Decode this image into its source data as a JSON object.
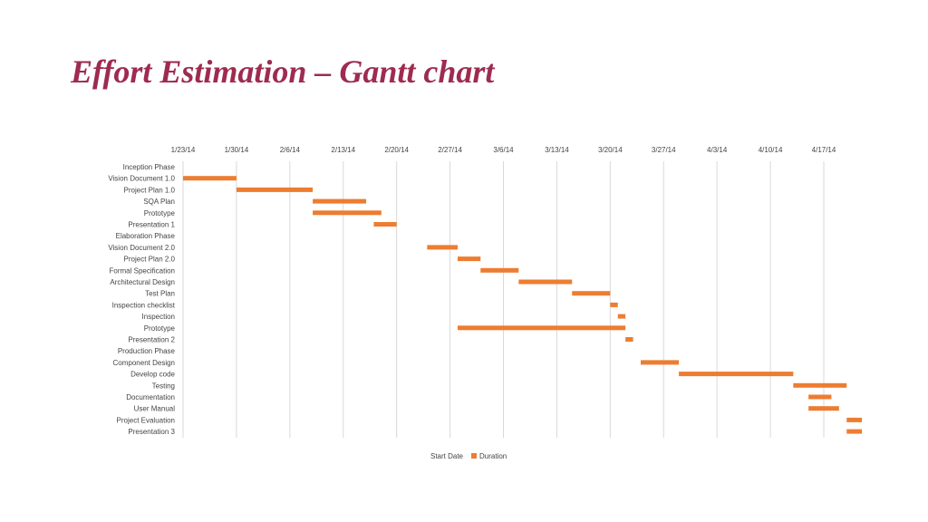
{
  "slide": {
    "title": "Effort Estimation – Gantt chart"
  },
  "chart_data": {
    "type": "bar",
    "orientation": "horizontal-stacked",
    "title": "",
    "xlabel": "",
    "ylabel": "",
    "x_range": [
      "2014-01-23",
      "2014-04-17"
    ],
    "x_ticks": [
      "1/23/14",
      "1/30/14",
      "2/6/14",
      "2/13/14",
      "2/20/14",
      "2/27/14",
      "3/6/14",
      "3/13/14",
      "3/20/14",
      "3/27/14",
      "4/3/14",
      "4/10/14",
      "4/17/14"
    ],
    "grid": "vertical",
    "legend_position": "bottom",
    "legend": [
      {
        "label": "Start Date",
        "color": "none"
      },
      {
        "label": "Duration",
        "color": "#ed7d31"
      }
    ],
    "colors": {
      "duration": "#ed7d31",
      "grid": "#d9d9d9"
    },
    "tasks": [
      {
        "name": "Inception Phase",
        "start": null,
        "end": null
      },
      {
        "name": "Vision Document 1.0",
        "start": "2014-01-23",
        "end": "2014-01-30"
      },
      {
        "name": "Project Plan 1.0",
        "start": "2014-01-30",
        "end": "2014-02-09"
      },
      {
        "name": "SQA Plan",
        "start": "2014-02-09",
        "end": "2014-02-16"
      },
      {
        "name": "Prototype",
        "start": "2014-02-09",
        "end": "2014-02-18"
      },
      {
        "name": "Presentation 1",
        "start": "2014-02-17",
        "end": "2014-02-20"
      },
      {
        "name": "Elaboration Phase",
        "start": null,
        "end": null
      },
      {
        "name": "Vision Document 2.0",
        "start": "2014-02-24",
        "end": "2014-02-28"
      },
      {
        "name": "Project Plan 2.0",
        "start": "2014-02-28",
        "end": "2014-03-03"
      },
      {
        "name": "Formal Specification",
        "start": "2014-03-03",
        "end": "2014-03-08"
      },
      {
        "name": "Architectural Design",
        "start": "2014-03-08",
        "end": "2014-03-15"
      },
      {
        "name": "Test Plan",
        "start": "2014-03-15",
        "end": "2014-03-20"
      },
      {
        "name": "Inspection checklist",
        "start": "2014-03-20",
        "end": "2014-03-21"
      },
      {
        "name": "Inspection",
        "start": "2014-03-21",
        "end": "2014-03-22"
      },
      {
        "name": "Prototype",
        "start": "2014-02-28",
        "end": "2014-03-22"
      },
      {
        "name": "Presentation 2",
        "start": "2014-03-22",
        "end": "2014-03-23"
      },
      {
        "name": "Production Phase",
        "start": null,
        "end": null
      },
      {
        "name": "Component Design",
        "start": "2014-03-24",
        "end": "2014-03-29"
      },
      {
        "name": "Develop code",
        "start": "2014-03-29",
        "end": "2014-04-13"
      },
      {
        "name": "Testing",
        "start": "2014-04-13",
        "end": "2014-04-20"
      },
      {
        "name": "Documentation",
        "start": "2014-04-15",
        "end": "2014-04-18"
      },
      {
        "name": "User Manual",
        "start": "2014-04-15",
        "end": "2014-04-19"
      },
      {
        "name": "Project Evaluation",
        "start": "2014-04-20",
        "end": "2014-04-22"
      },
      {
        "name": "Presentation 3",
        "start": "2014-04-20",
        "end": "2014-04-22"
      }
    ]
  }
}
